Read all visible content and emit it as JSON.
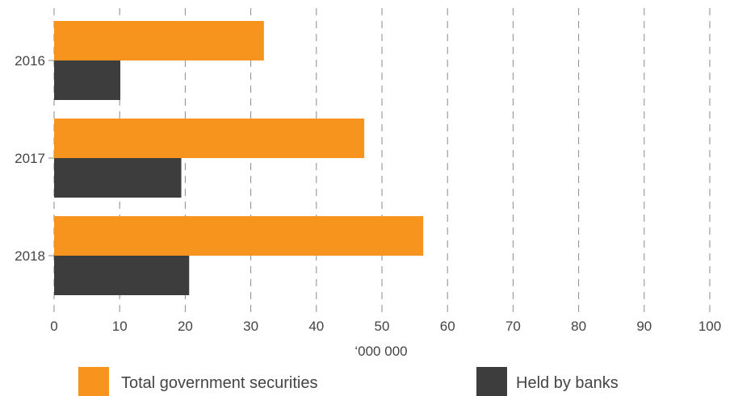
{
  "chart_data": {
    "type": "bar",
    "orientation": "horizontal",
    "categories": [
      "2016",
      "2017",
      "2018"
    ],
    "series": [
      {
        "name": "Total government securities",
        "values": [
          32,
          47.3,
          56.3
        ],
        "color": "#F7941D"
      },
      {
        "name": "Held by banks",
        "values": [
          10.1,
          19.4,
          20.6
        ],
        "color": "#3D3D3D"
      }
    ],
    "x_ticks": [
      "0",
      "10",
      "20",
      "30",
      "40",
      "50",
      "60",
      "70",
      "80",
      "90",
      "100"
    ],
    "xlim": [
      0,
      100
    ],
    "xlabel": "‘000 000",
    "title": "",
    "grid": "vertical-dashed",
    "legend_position": "bottom"
  }
}
